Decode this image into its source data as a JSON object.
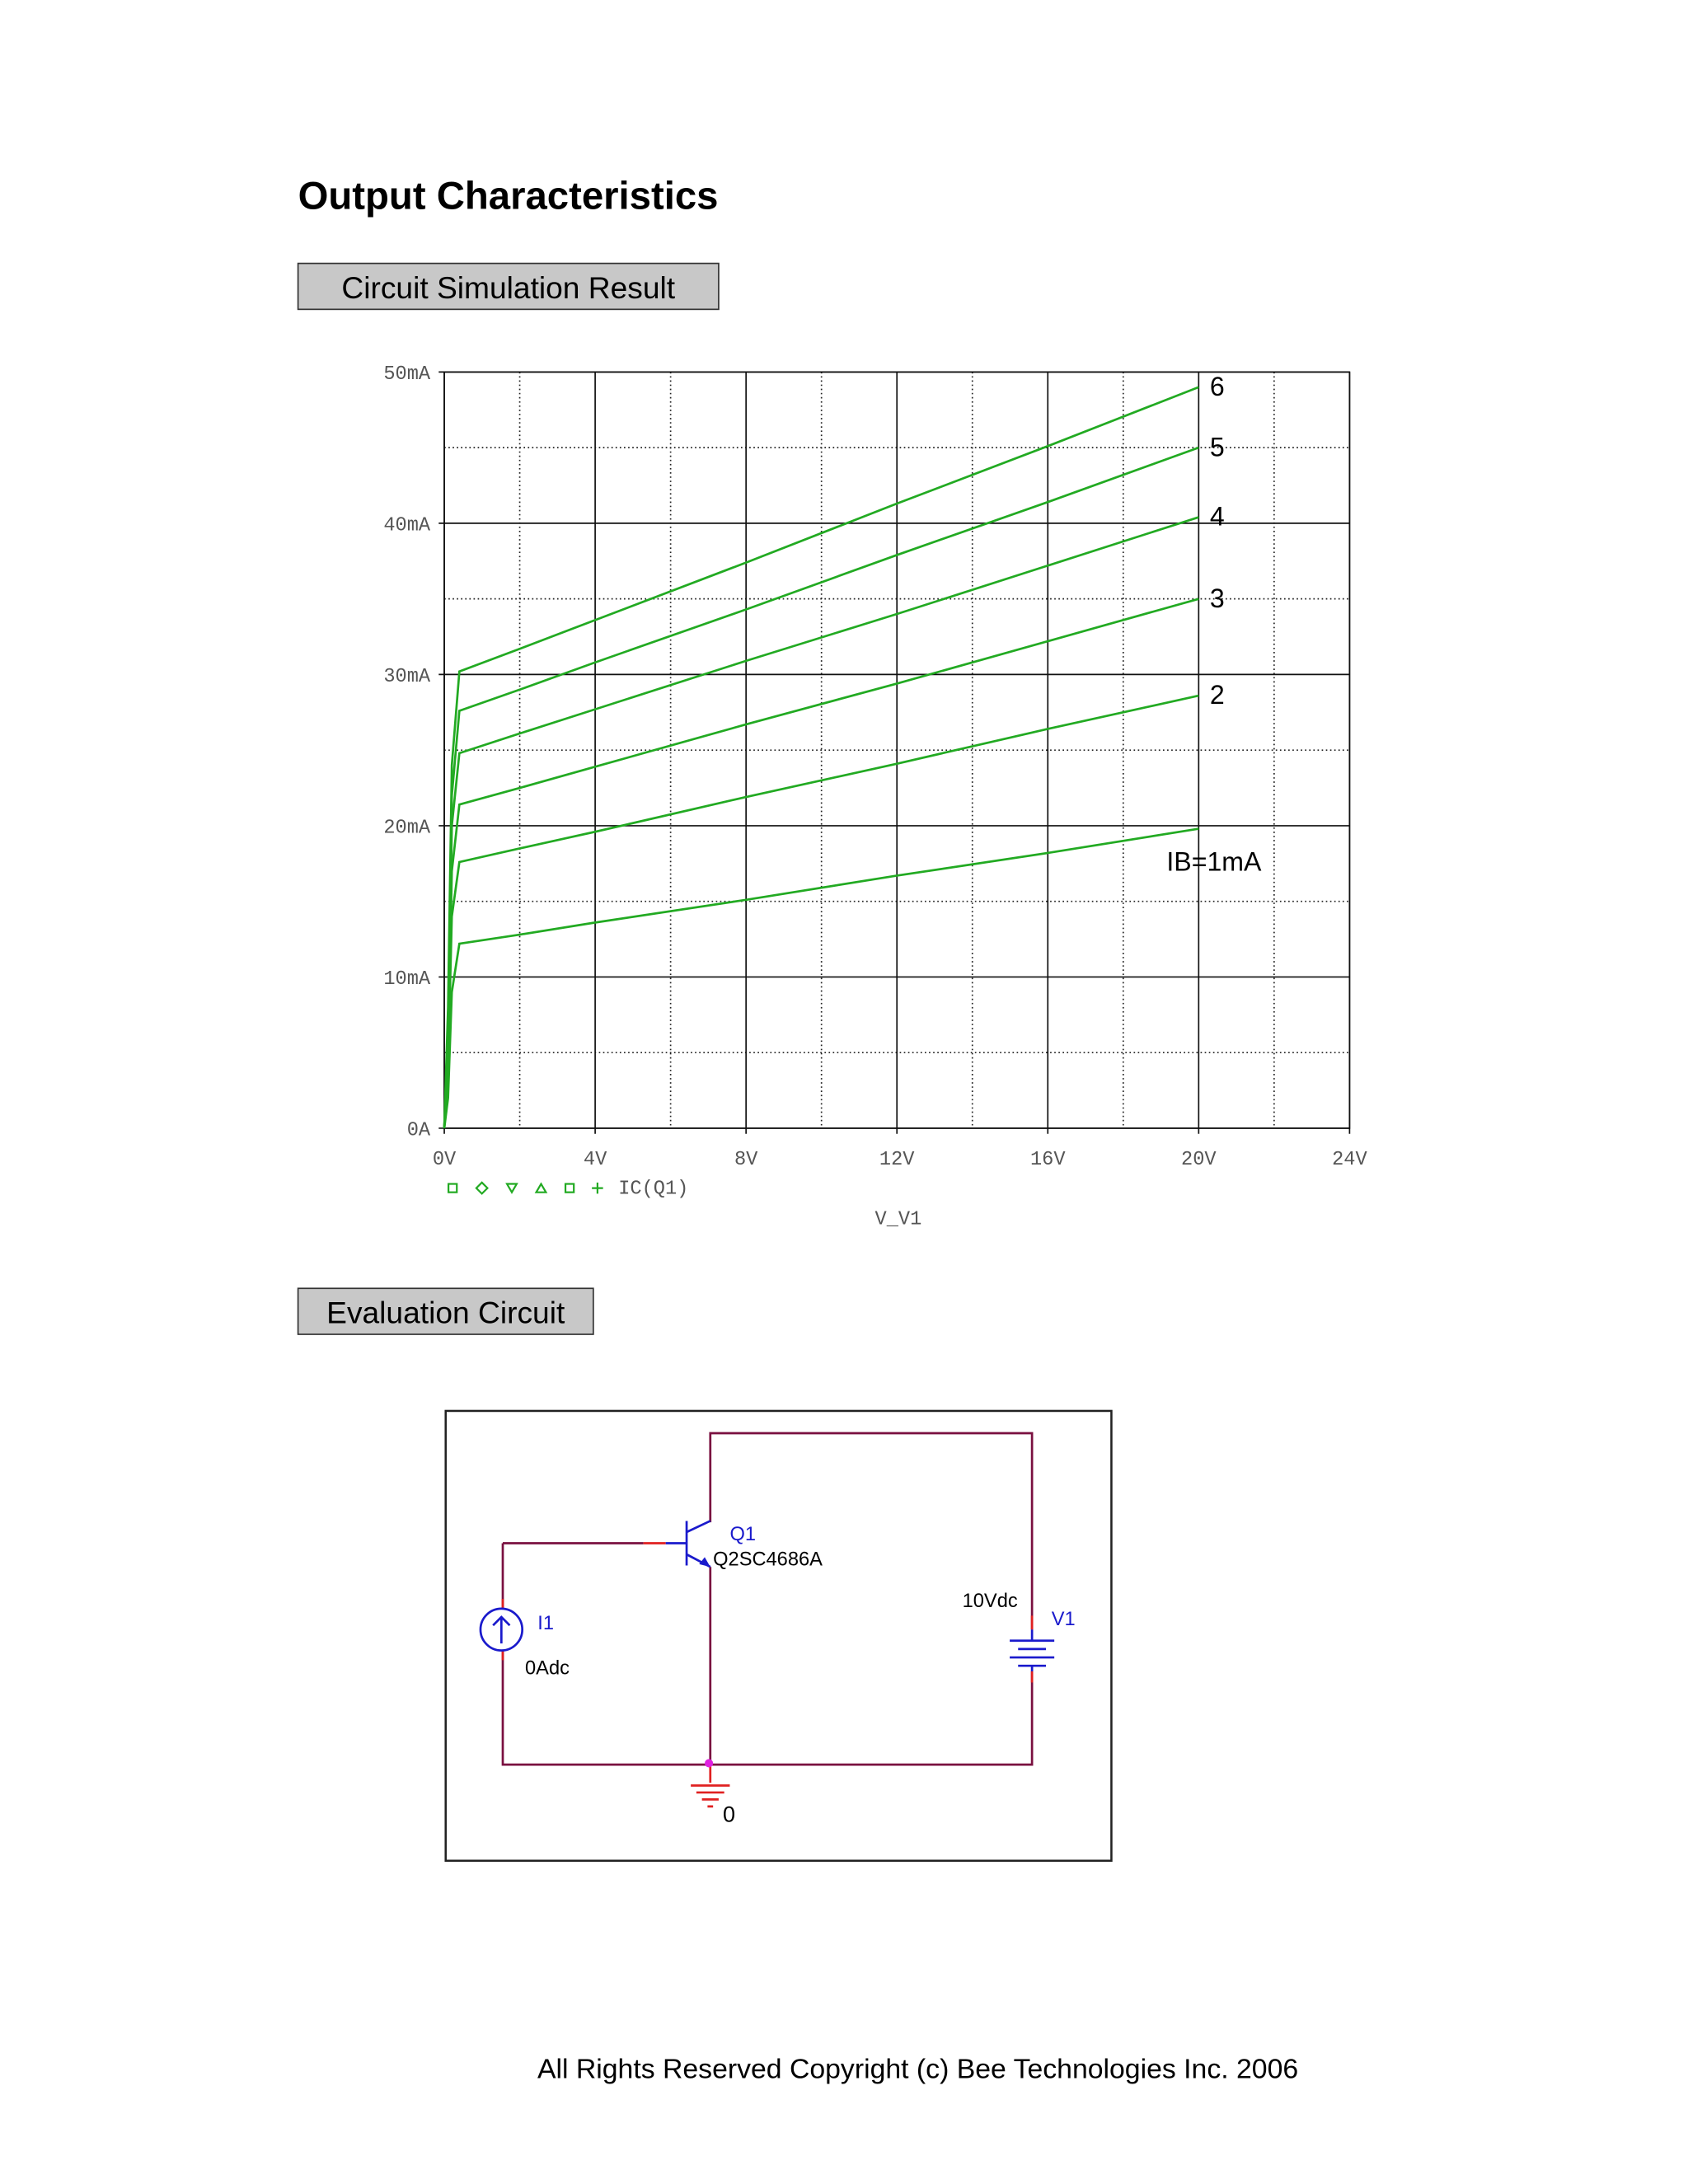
{
  "header": {
    "title": "Output Characteristics"
  },
  "sections": [
    "Circuit Simulation Result",
    "Evaluation Circuit"
  ],
  "chart_data": {
    "type": "line",
    "x_label": "V_V1",
    "legend_label": "IC(Q1)",
    "grid": true,
    "x": [
      0,
      0.1,
      0.2,
      0.4,
      2,
      4,
      8,
      12,
      16,
      20
    ],
    "series": [
      {
        "name": "IB=1mA",
        "color": "#22aa22",
        "values": [
          0,
          2,
          9,
          12.2,
          12.8,
          13.6,
          15.1,
          16.7,
          18.2,
          19.8
        ]
      },
      {
        "name": "2",
        "color": "#22aa22",
        "values": [
          0,
          4,
          14,
          17.6,
          18.5,
          19.6,
          21.9,
          24.1,
          26.4,
          28.6
        ]
      },
      {
        "name": "3",
        "color": "#22aa22",
        "values": [
          0,
          5,
          17,
          21.4,
          22.5,
          23.9,
          26.7,
          29.4,
          32.2,
          35
        ]
      },
      {
        "name": "4",
        "color": "#22aa22",
        "values": [
          0,
          6,
          20,
          24.8,
          26.1,
          27.7,
          30.9,
          34.0,
          37.2,
          40.4
        ]
      },
      {
        "name": "5",
        "color": "#22aa22",
        "values": [
          0,
          7,
          22,
          27.6,
          29.0,
          30.8,
          34.3,
          37.9,
          41.4,
          45
        ]
      },
      {
        "name": "6",
        "color": "#22aa22",
        "values": [
          0,
          8,
          24,
          30.2,
          31.7,
          33.6,
          37.4,
          41.3,
          45.1,
          49
        ]
      }
    ],
    "xlim": [
      0,
      24
    ],
    "ylim": [
      0,
      50
    ],
    "xticks": [
      {
        "value": 0,
        "label": "0V"
      },
      {
        "value": 4,
        "label": "4V"
      },
      {
        "value": 8,
        "label": "8V"
      },
      {
        "value": 12,
        "label": "12V"
      },
      {
        "value": 16,
        "label": "16V"
      },
      {
        "value": 20,
        "label": "20V"
      },
      {
        "value": 24,
        "label": "24V"
      }
    ],
    "yticks": [
      {
        "value": 0,
        "label": "0A"
      },
      {
        "value": 10,
        "label": "10mA"
      },
      {
        "value": 20,
        "label": "20mA"
      },
      {
        "value": 30,
        "label": "30mA"
      },
      {
        "value": 40,
        "label": "40mA"
      },
      {
        "value": 50,
        "label": "50mA"
      }
    ]
  },
  "circuit": {
    "q_name": "Q1",
    "q_model": "Q2SC4686A",
    "i_name": "I1",
    "i_value": "0Adc",
    "v_value": "10Vdc",
    "v_name": "V1",
    "ground": "0"
  },
  "footer": "All Rights Reserved Copyright (c) Bee Technologies Inc. 2006"
}
